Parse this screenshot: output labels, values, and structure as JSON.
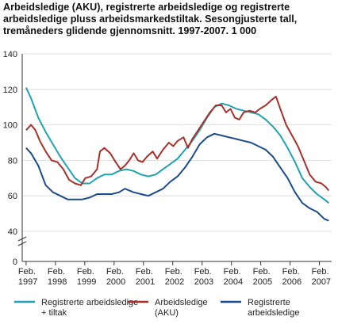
{
  "chart_data": {
    "type": "line",
    "title": "Arbeidsledige (AKU), registrerte arbeidsledige og registrerte arbeidsledige pluss arbeidsmarkedstiltak. Sesongjusterte tall, tremåneders glidende gjennomsnitt. 1997-2007. 1 000",
    "xlabel": "",
    "ylabel": "",
    "ylim": [
      0,
      140
    ],
    "y_ticks": [
      "0",
      "40",
      "60",
      "80",
      "100",
      "120",
      "140"
    ],
    "y_axis_break": true,
    "grid": true,
    "legend_position": "bottom",
    "x_ticks": [
      {
        "line1": "Feb.",
        "line2": "1997",
        "t": 1997.083
      },
      {
        "line1": "Feb.",
        "line2": "1998",
        "t": 1998.083
      },
      {
        "line1": "Feb.",
        "line2": "1999",
        "t": 1999.083
      },
      {
        "line1": "Feb.",
        "line2": "2000",
        "t": 2000.083
      },
      {
        "line1": "Feb.",
        "line2": "2001",
        "t": 2001.083
      },
      {
        "line1": "Feb.",
        "line2": "2002",
        "t": 2002.083
      },
      {
        "line1": "Feb.",
        "line2": "2003",
        "t": 2003.083
      },
      {
        "line1": "Feb.",
        "line2": "2004",
        "t": 2004.083
      },
      {
        "line1": "Feb.",
        "line2": "2005",
        "t": 2005.083
      },
      {
        "line1": "Feb.",
        "line2": "2006",
        "t": 2006.083
      },
      {
        "line1": "Feb.",
        "line2": "2007",
        "t": 2007.083
      }
    ],
    "series": [
      {
        "name": "Registrerte arbeidsledige + tiltak",
        "color": "#1fa3b3",
        "points": [
          [
            1997.083,
            121
          ],
          [
            1997.25,
            115
          ],
          [
            1997.5,
            104
          ],
          [
            1997.75,
            96
          ],
          [
            1998.0,
            89
          ],
          [
            1998.25,
            82
          ],
          [
            1998.5,
            76
          ],
          [
            1998.75,
            70
          ],
          [
            1999.0,
            67
          ],
          [
            1999.25,
            67
          ],
          [
            1999.5,
            70
          ],
          [
            1999.75,
            72
          ],
          [
            2000.0,
            72
          ],
          [
            2000.25,
            74
          ],
          [
            2000.5,
            75
          ],
          [
            2000.75,
            74
          ],
          [
            2001.0,
            72
          ],
          [
            2001.25,
            71
          ],
          [
            2001.5,
            72
          ],
          [
            2001.75,
            75
          ],
          [
            2002.0,
            78
          ],
          [
            2002.25,
            81
          ],
          [
            2002.5,
            86
          ],
          [
            2002.75,
            91
          ],
          [
            2003.0,
            97
          ],
          [
            2003.25,
            104
          ],
          [
            2003.5,
            110
          ],
          [
            2003.75,
            112
          ],
          [
            2004.0,
            111
          ],
          [
            2004.25,
            109
          ],
          [
            2004.5,
            108
          ],
          [
            2004.75,
            107
          ],
          [
            2005.0,
            106
          ],
          [
            2005.25,
            103
          ],
          [
            2005.5,
            99
          ],
          [
            2005.75,
            94
          ],
          [
            2006.0,
            87
          ],
          [
            2006.25,
            79
          ],
          [
            2006.5,
            70
          ],
          [
            2006.75,
            65
          ],
          [
            2007.0,
            61
          ],
          [
            2007.25,
            58
          ],
          [
            2007.4,
            56
          ]
        ]
      },
      {
        "name": "Arbeidsledige (AKU)",
        "color": "#a8302a",
        "points": [
          [
            1997.083,
            97
          ],
          [
            1997.25,
            100
          ],
          [
            1997.4,
            97
          ],
          [
            1997.55,
            91
          ],
          [
            1997.75,
            85
          ],
          [
            1997.95,
            80
          ],
          [
            1998.15,
            79
          ],
          [
            1998.35,
            75
          ],
          [
            1998.55,
            69
          ],
          [
            1998.75,
            67
          ],
          [
            1998.95,
            66
          ],
          [
            1999.1,
            70
          ],
          [
            1999.3,
            71
          ],
          [
            1999.5,
            75
          ],
          [
            1999.6,
            85
          ],
          [
            1999.75,
            87
          ],
          [
            1999.95,
            84
          ],
          [
            2000.1,
            80
          ],
          [
            2000.3,
            75
          ],
          [
            2000.45,
            77
          ],
          [
            2000.6,
            80
          ],
          [
            2000.75,
            84
          ],
          [
            2000.9,
            80
          ],
          [
            2001.05,
            79
          ],
          [
            2001.2,
            82
          ],
          [
            2001.4,
            85
          ],
          [
            2001.55,
            81
          ],
          [
            2001.75,
            86
          ],
          [
            2001.95,
            90
          ],
          [
            2002.1,
            88
          ],
          [
            2002.25,
            91
          ],
          [
            2002.45,
            93
          ],
          [
            2002.6,
            87
          ],
          [
            2002.75,
            92
          ],
          [
            2002.95,
            97
          ],
          [
            2003.15,
            102
          ],
          [
            2003.35,
            107
          ],
          [
            2003.55,
            111
          ],
          [
            2003.75,
            111
          ],
          [
            2003.9,
            107
          ],
          [
            2004.05,
            109
          ],
          [
            2004.2,
            104
          ],
          [
            2004.35,
            103
          ],
          [
            2004.5,
            107
          ],
          [
            2004.7,
            108
          ],
          [
            2004.9,
            107
          ],
          [
            2005.05,
            109
          ],
          [
            2005.25,
            111
          ],
          [
            2005.45,
            114
          ],
          [
            2005.6,
            116
          ],
          [
            2005.75,
            109
          ],
          [
            2005.95,
            100
          ],
          [
            2006.15,
            94
          ],
          [
            2006.35,
            88
          ],
          [
            2006.55,
            80
          ],
          [
            2006.75,
            72
          ],
          [
            2006.95,
            68
          ],
          [
            2007.15,
            67
          ],
          [
            2007.3,
            65
          ],
          [
            2007.4,
            63
          ]
        ]
      },
      {
        "name": "Registrerte arbeidsledige",
        "color": "#1b4b8c",
        "points": [
          [
            1997.083,
            87
          ],
          [
            1997.25,
            84
          ],
          [
            1997.5,
            77
          ],
          [
            1997.75,
            66
          ],
          [
            1998.0,
            62
          ],
          [
            1998.25,
            60
          ],
          [
            1998.5,
            58
          ],
          [
            1998.75,
            58
          ],
          [
            1999.0,
            58
          ],
          [
            1999.25,
            59
          ],
          [
            1999.5,
            61
          ],
          [
            1999.75,
            61
          ],
          [
            2000.0,
            61
          ],
          [
            2000.25,
            62
          ],
          [
            2000.45,
            64
          ],
          [
            2000.75,
            62
          ],
          [
            2001.0,
            61
          ],
          [
            2001.25,
            60
          ],
          [
            2001.5,
            62
          ],
          [
            2001.75,
            64
          ],
          [
            2002.0,
            68
          ],
          [
            2002.25,
            71
          ],
          [
            2002.5,
            76
          ],
          [
            2002.75,
            82
          ],
          [
            2003.0,
            89
          ],
          [
            2003.25,
            93
          ],
          [
            2003.5,
            95
          ],
          [
            2003.75,
            94
          ],
          [
            2004.0,
            93
          ],
          [
            2004.25,
            92
          ],
          [
            2004.5,
            91
          ],
          [
            2004.75,
            90
          ],
          [
            2005.0,
            88
          ],
          [
            2005.25,
            86
          ],
          [
            2005.5,
            82
          ],
          [
            2005.75,
            76
          ],
          [
            2006.0,
            70
          ],
          [
            2006.25,
            62
          ],
          [
            2006.5,
            56
          ],
          [
            2006.75,
            53
          ],
          [
            2007.0,
            51
          ],
          [
            2007.25,
            47
          ],
          [
            2007.4,
            46
          ]
        ]
      }
    ]
  }
}
